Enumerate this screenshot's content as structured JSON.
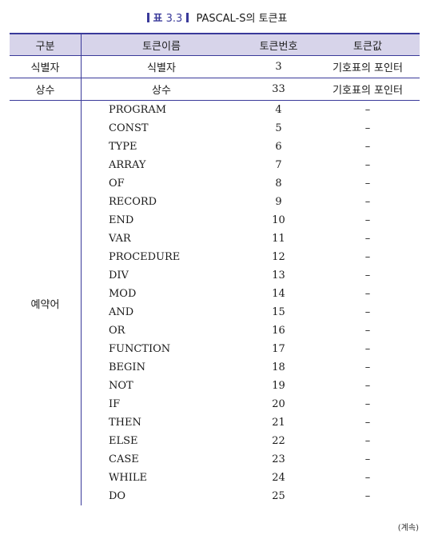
{
  "caption": {
    "label": "표",
    "number": "3.3",
    "title": "PASCAL-S의 토큰표"
  },
  "headers": [
    "구분",
    "토큰이름",
    "토큰번호",
    "토큰값"
  ],
  "top_rows": [
    {
      "category": "식별자",
      "name": "식별자",
      "number": "3",
      "value": "기호표의 포인터"
    },
    {
      "category": "상수",
      "name": "상수",
      "number": "33",
      "value": "기호표의 포인터"
    }
  ],
  "reserved": {
    "category": "예약어",
    "rows": [
      {
        "name": "PROGRAM",
        "number": "4",
        "value": "–"
      },
      {
        "name": "CONST",
        "number": "5",
        "value": "–"
      },
      {
        "name": "TYPE",
        "number": "6",
        "value": "–"
      },
      {
        "name": "ARRAY",
        "number": "7",
        "value": "–"
      },
      {
        "name": "OF",
        "number": "8",
        "value": "–"
      },
      {
        "name": "RECORD",
        "number": "9",
        "value": "–"
      },
      {
        "name": "END",
        "number": "10",
        "value": "–"
      },
      {
        "name": "VAR",
        "number": "11",
        "value": "–"
      },
      {
        "name": "PROCEDURE",
        "number": "12",
        "value": "–"
      },
      {
        "name": "DIV",
        "number": "13",
        "value": "–"
      },
      {
        "name": "MOD",
        "number": "14",
        "value": "–"
      },
      {
        "name": "AND",
        "number": "15",
        "value": "–"
      },
      {
        "name": "OR",
        "number": "16",
        "value": "–"
      },
      {
        "name": "FUNCTION",
        "number": "17",
        "value": "–"
      },
      {
        "name": "BEGIN",
        "number": "18",
        "value": "–"
      },
      {
        "name": "NOT",
        "number": "19",
        "value": "–"
      },
      {
        "name": "IF",
        "number": "20",
        "value": "–"
      },
      {
        "name": "THEN",
        "number": "21",
        "value": "–"
      },
      {
        "name": "ELSE",
        "number": "22",
        "value": "–"
      },
      {
        "name": "CASE",
        "number": "23",
        "value": "–"
      },
      {
        "name": "WHILE",
        "number": "24",
        "value": "–"
      },
      {
        "name": "DO",
        "number": "25",
        "value": "–"
      }
    ]
  },
  "continued": "(계속)",
  "colors": {
    "accent": "#3a3a9a",
    "header_bg": "#d7d4ea"
  }
}
